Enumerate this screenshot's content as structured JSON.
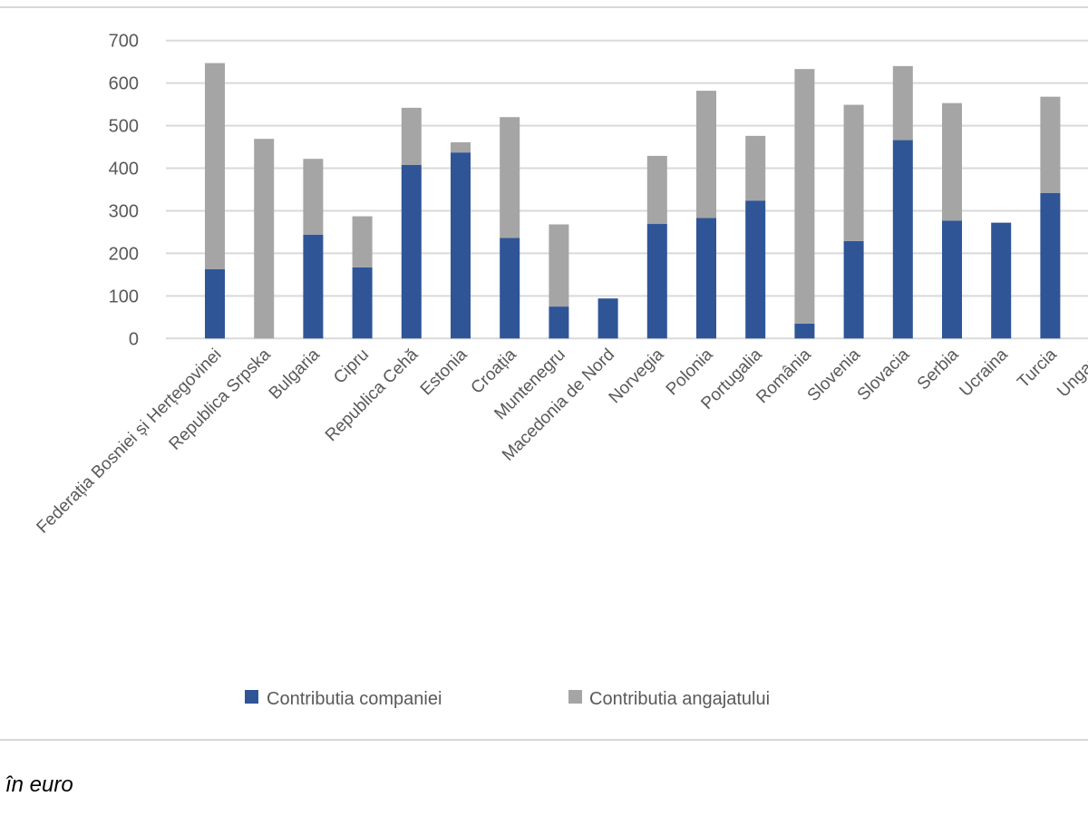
{
  "chart_data": {
    "type": "bar",
    "stacked": true,
    "categories": [
      "Federația Bosniei și Herțegovinei",
      "Republica Srpska",
      "Bulgaria",
      "Cipru",
      "Republica Cehă",
      "Estonia",
      "Croația",
      "Muntenegru",
      "Macedonia de Nord",
      "Norvegia",
      "Polonia",
      "Portugalia",
      "România",
      "Slovenia",
      "Slovacia",
      "Serbia",
      "Ucraina",
      "Turcia",
      "Ungaria"
    ],
    "series": [
      {
        "name": "Contributia companiei",
        "color": "#2f5597",
        "values": [
          163,
          0,
          244,
          167,
          408,
          437,
          236,
          75,
          94,
          269,
          283,
          324,
          35,
          229,
          466,
          277,
          272,
          342,
          null
        ]
      },
      {
        "name": "Contributia angajatului",
        "color": "#a5a5a5",
        "values": [
          484,
          469,
          178,
          120,
          134,
          24,
          284,
          193,
          0,
          160,
          299,
          152,
          598,
          320,
          174,
          276,
          0,
          226,
          null
        ]
      }
    ],
    "yticks": [
      "0",
      "100",
      "200",
      "300",
      "400",
      "500",
      "600",
      "700"
    ],
    "ylim": [
      0,
      700
    ],
    "grid": true,
    "legend": "bottom",
    "xlabel": "",
    "ylabel": ""
  },
  "caption": "i în euro"
}
